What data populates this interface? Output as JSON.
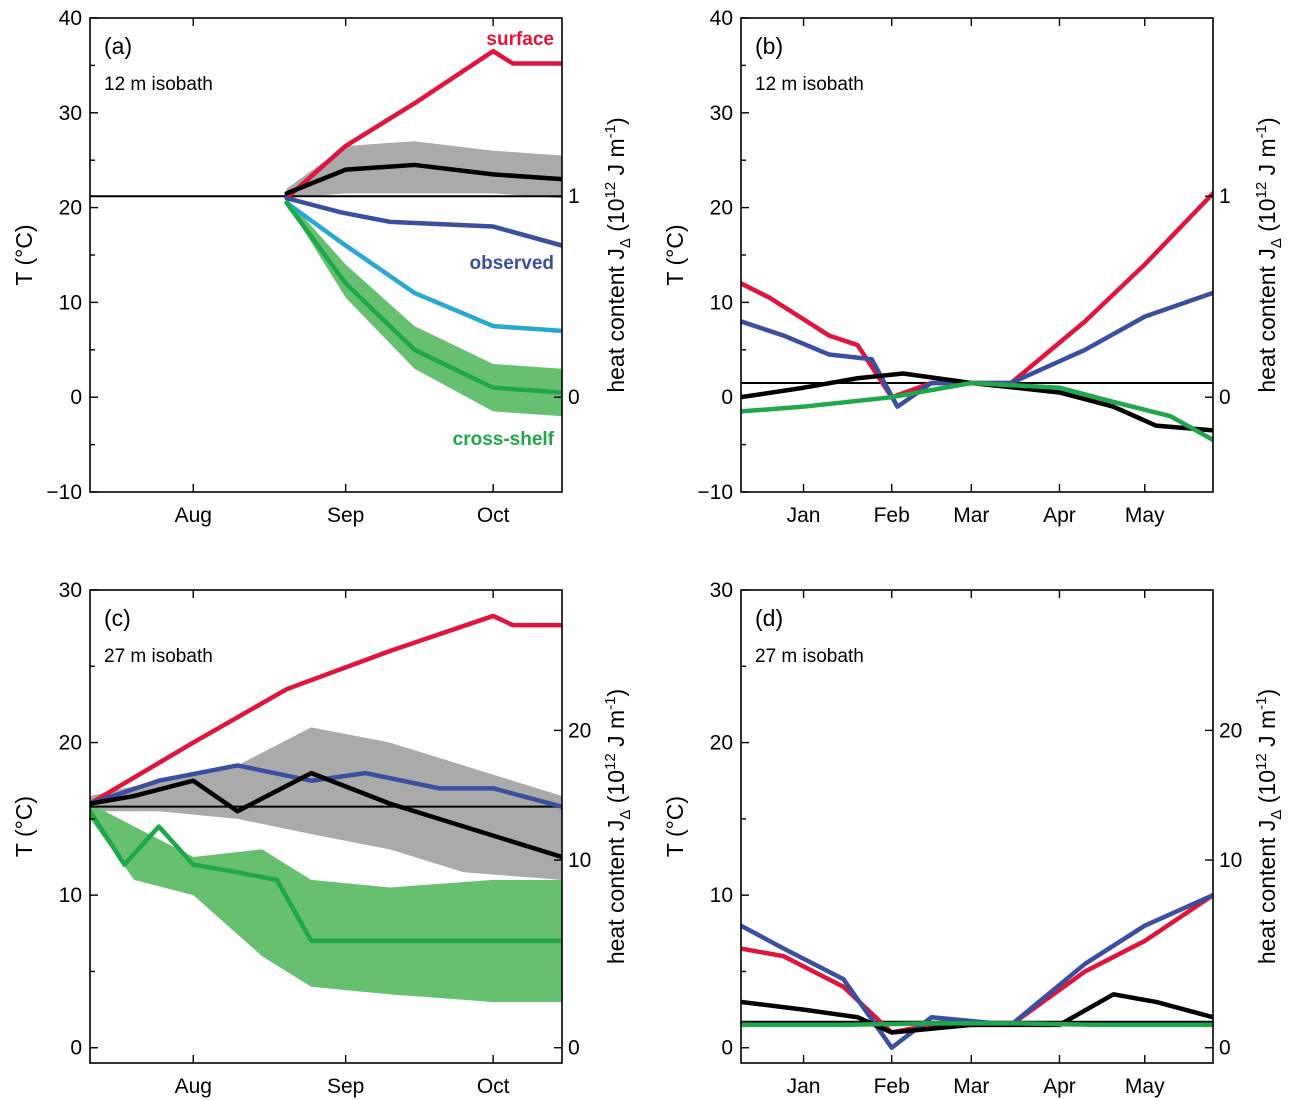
{
  "chart_data": [
    {
      "id": "a",
      "type": "line",
      "panel_label": "(a)",
      "subtitle": "12 m isobath",
      "ylabel": "T (°C)",
      "ylabel_right_main": "heat content J",
      "ylabel_right_sub": "Δ",
      "ylabel_right_unit": " (10",
      "ylabel_right_exp": "12",
      "ylabel_right_unit2": " J m",
      "ylabel_right_exp2": "-1",
      "ylabel_right_close": ")",
      "ylim": [
        -10,
        40
      ],
      "yticks": [
        -10,
        0,
        10,
        20,
        30,
        40
      ],
      "ylim_right": [
        0,
        1
      ],
      "yticks_right": [
        0,
        1
      ],
      "xlim": [
        "2017-07-11",
        "2017-10-15"
      ],
      "xticks": [
        {
          "date": "2017-08-01",
          "label": "Aug"
        },
        {
          "date": "2017-09-01",
          "label": "Sep"
        },
        {
          "date": "2017-10-01",
          "label": "Oct"
        }
      ],
      "reference_line_y": 21.2,
      "annotations": [
        {
          "text": "surface",
          "color": "#e0143c"
        },
        {
          "text": "observed",
          "color": "#3a4fa0"
        },
        {
          "text": "cross-shelf",
          "color": "#1fa84a"
        }
      ],
      "bands": [
        {
          "name": "gray band",
          "color": "#aaaaaa",
          "x": [
            "2017-08-20",
            "2017-09-01",
            "2017-09-15",
            "2017-10-01",
            "2017-10-15"
          ],
          "lower": [
            21,
            21.5,
            21.5,
            21.5,
            21
          ],
          "upper": [
            22,
            26.5,
            27,
            26,
            25.5
          ]
        },
        {
          "name": "green band",
          "color": "#66c070",
          "x": [
            "2017-08-20",
            "2017-09-01",
            "2017-09-15",
            "2017-10-01",
            "2017-10-15"
          ],
          "lower": [
            20.5,
            10.5,
            3,
            -1.5,
            -2
          ],
          "upper": [
            21,
            14,
            7.5,
            3.5,
            3
          ]
        }
      ],
      "series": [
        {
          "color": "#e0143c",
          "x": [
            "2017-08-20",
            "2017-09-01",
            "2017-09-15",
            "2017-10-01",
            "2017-10-05",
            "2017-10-15"
          ],
          "y": [
            21,
            26.5,
            31,
            36.5,
            35.2,
            35.2
          ]
        },
        {
          "color": "#000000",
          "x": [
            "2017-08-20",
            "2017-09-01",
            "2017-09-15",
            "2017-10-01",
            "2017-10-15"
          ],
          "y": [
            21.5,
            24,
            24.5,
            23.5,
            23
          ]
        },
        {
          "color": "#3a4fa0",
          "x": [
            "2017-08-20",
            "2017-08-31",
            "2017-09-10",
            "2017-10-01",
            "2017-10-15"
          ],
          "y": [
            21,
            19.5,
            18.5,
            18,
            16
          ]
        },
        {
          "color": "#27a9d2",
          "x": [
            "2017-08-20",
            "2017-09-01",
            "2017-09-15",
            "2017-10-01",
            "2017-10-15"
          ],
          "y": [
            20.5,
            16,
            11,
            7.5,
            7
          ]
        },
        {
          "color": "#1fa84a",
          "x": [
            "2017-08-20",
            "2017-09-01",
            "2017-09-15",
            "2017-10-01",
            "2017-10-15"
          ],
          "y": [
            20.5,
            12,
            5,
            1,
            0.5
          ]
        }
      ]
    },
    {
      "id": "b",
      "type": "line",
      "panel_label": "(b)",
      "subtitle": "12 m isobath",
      "ylabel": "T (°C)",
      "ylabel_right_main": "heat content J",
      "ylabel_right_sub": "Δ",
      "ylabel_right_unit": " (10",
      "ylabel_right_exp": "12",
      "ylabel_right_unit2": " J m",
      "ylabel_right_exp2": "-1",
      "ylabel_right_close": ")",
      "ylim": [
        -10,
        40
      ],
      "yticks": [
        -10,
        0,
        10,
        20,
        30,
        40
      ],
      "ylim_right": [
        0,
        1
      ],
      "yticks_right": [
        0,
        1
      ],
      "xlim": [
        "2017-12-10",
        "2018-05-25"
      ],
      "xticks": [
        {
          "date": "2018-01-01",
          "label": "Jan"
        },
        {
          "date": "2018-02-01",
          "label": "Feb"
        },
        {
          "date": "2018-03-01",
          "label": "Mar"
        },
        {
          "date": "2018-04-01",
          "label": "Apr"
        },
        {
          "date": "2018-05-01",
          "label": "May"
        }
      ],
      "reference_line_y": 1.5,
      "series": [
        {
          "color": "#e0143c",
          "x": [
            "2017-12-10",
            "2017-12-20",
            "2018-01-10",
            "2018-01-20",
            "2018-02-01",
            "2018-02-15",
            "2018-03-15",
            "2018-04-10",
            "2018-05-01",
            "2018-05-25"
          ],
          "y": [
            12,
            10.5,
            6.5,
            5.5,
            0,
            1.5,
            1.5,
            8,
            14,
            21.5
          ]
        },
        {
          "color": "#3a4fa0",
          "x": [
            "2017-12-10",
            "2017-12-25",
            "2018-01-10",
            "2018-01-25",
            "2018-02-03",
            "2018-02-15",
            "2018-03-15",
            "2018-04-10",
            "2018-05-01",
            "2018-05-25"
          ],
          "y": [
            8,
            6.5,
            4.5,
            4,
            -1,
            1.5,
            1.5,
            5,
            8.5,
            11
          ]
        },
        {
          "color": "#000000",
          "x": [
            "2017-12-10",
            "2018-01-01",
            "2018-01-20",
            "2018-02-05",
            "2018-03-01",
            "2018-04-01",
            "2018-04-20",
            "2018-05-05",
            "2018-05-25"
          ],
          "y": [
            0,
            1,
            2,
            2.5,
            1.5,
            0.5,
            -1,
            -3,
            -3.5
          ]
        },
        {
          "color": "#1fa84a",
          "x": [
            "2017-12-10",
            "2018-01-01",
            "2018-02-01",
            "2018-03-01",
            "2018-04-01",
            "2018-04-20",
            "2018-05-10",
            "2018-05-25"
          ],
          "y": [
            -1.5,
            -1,
            0,
            1.5,
            1,
            -0.5,
            -2,
            -4.5
          ]
        }
      ]
    },
    {
      "id": "c",
      "type": "line",
      "panel_label": "(c)",
      "subtitle": "27 m isobath",
      "ylabel": "T (°C)",
      "ylabel_right_main": "heat content J",
      "ylabel_right_sub": "Δ",
      "ylabel_right_unit": " (10",
      "ylabel_right_exp": "12",
      "ylabel_right_unit2": " J m",
      "ylabel_right_exp2": "-1",
      "ylabel_right_close": ")",
      "ylim": [
        -1,
        30
      ],
      "yticks": [
        0,
        10,
        20,
        30
      ],
      "ylim_right": [
        0,
        20
      ],
      "yticks_right": [
        0,
        10,
        20
      ],
      "xlim": [
        "2017-07-11",
        "2017-10-15"
      ],
      "xticks": [
        {
          "date": "2017-08-01",
          "label": "Aug"
        },
        {
          "date": "2017-09-01",
          "label": "Sep"
        },
        {
          "date": "2017-10-01",
          "label": "Oct"
        }
      ],
      "reference_line_y": 15.8,
      "bands": [
        {
          "name": "gray band",
          "color": "#aaaaaa",
          "x": [
            "2017-07-11",
            "2017-07-25",
            "2017-08-10",
            "2017-08-25",
            "2017-09-10",
            "2017-09-25",
            "2017-10-15"
          ],
          "lower": [
            15.5,
            15.5,
            15,
            14,
            13,
            11.5,
            11
          ],
          "upper": [
            16.5,
            17.5,
            18.5,
            21,
            20,
            18.5,
            16.5
          ]
        },
        {
          "name": "green band",
          "color": "#66c070",
          "x": [
            "2017-07-11",
            "2017-07-20",
            "2017-08-01",
            "2017-08-15",
            "2017-08-25",
            "2017-09-10",
            "2017-10-01",
            "2017-10-15"
          ],
          "lower": [
            15,
            11,
            10,
            6,
            4,
            3.5,
            3,
            3
          ],
          "upper": [
            16,
            14.5,
            12.5,
            13,
            11,
            10.5,
            11,
            11
          ]
        }
      ],
      "series": [
        {
          "color": "#e0143c",
          "x": [
            "2017-07-11",
            "2017-08-01",
            "2017-08-20",
            "2017-09-10",
            "2017-10-01",
            "2017-10-05",
            "2017-10-15"
          ],
          "y": [
            16,
            20,
            23.5,
            26,
            28.3,
            27.7,
            27.7
          ]
        },
        {
          "color": "#3a4fa0",
          "x": [
            "2017-07-11",
            "2017-07-25",
            "2017-08-10",
            "2017-08-25",
            "2017-09-05",
            "2017-09-20",
            "2017-10-01",
            "2017-10-15"
          ],
          "y": [
            16,
            17.5,
            18.5,
            17.5,
            18,
            17,
            17,
            15.8
          ]
        },
        {
          "color": "#000000",
          "x": [
            "2017-07-11",
            "2017-07-20",
            "2017-08-01",
            "2017-08-10",
            "2017-08-25",
            "2017-09-10",
            "2017-09-25",
            "2017-10-15"
          ],
          "y": [
            16,
            16.5,
            17.5,
            15.5,
            18,
            16,
            14.5,
            12.5
          ]
        },
        {
          "color": "#1fa84a",
          "x": [
            "2017-07-11",
            "2017-07-18",
            "2017-07-25",
            "2017-08-01",
            "2017-08-10",
            "2017-08-18",
            "2017-08-25",
            "2017-09-10",
            "2017-09-25",
            "2017-10-15"
          ],
          "y": [
            15.5,
            12,
            14.5,
            12,
            11.5,
            11,
            7,
            7,
            7,
            7
          ]
        }
      ]
    },
    {
      "id": "d",
      "type": "line",
      "panel_label": "(d)",
      "subtitle": "27 m isobath",
      "ylabel": "T (°C)",
      "ylabel_right_main": "heat content J",
      "ylabel_right_sub": "Δ",
      "ylabel_right_unit": " (10",
      "ylabel_right_exp": "12",
      "ylabel_right_unit2": " J m",
      "ylabel_right_exp2": "-1",
      "ylabel_right_close": ")",
      "ylim": [
        -1,
        30
      ],
      "yticks": [
        0,
        10,
        20,
        30
      ],
      "ylim_right": [
        0,
        20
      ],
      "yticks_right": [
        0,
        10,
        20
      ],
      "xlim": [
        "2017-12-10",
        "2018-05-25"
      ],
      "xticks": [
        {
          "date": "2018-01-01",
          "label": "Jan"
        },
        {
          "date": "2018-02-01",
          "label": "Feb"
        },
        {
          "date": "2018-03-01",
          "label": "Mar"
        },
        {
          "date": "2018-04-01",
          "label": "Apr"
        },
        {
          "date": "2018-05-01",
          "label": "May"
        }
      ],
      "reference_line_y": 1.7,
      "series": [
        {
          "color": "#e0143c",
          "x": [
            "2017-12-10",
            "2017-12-25",
            "2018-01-15",
            "2018-02-01",
            "2018-02-15",
            "2018-03-15",
            "2018-04-10",
            "2018-05-01",
            "2018-05-25"
          ],
          "y": [
            6.5,
            6,
            4,
            1,
            1.5,
            1.5,
            5,
            7,
            10
          ]
        },
        {
          "color": "#3a4fa0",
          "x": [
            "2017-12-10",
            "2017-12-25",
            "2018-01-15",
            "2018-02-01",
            "2018-02-15",
            "2018-03-15",
            "2018-04-10",
            "2018-05-01",
            "2018-05-25"
          ],
          "y": [
            8,
            6.5,
            4.5,
            0,
            2,
            1.5,
            5.5,
            8,
            10
          ]
        },
        {
          "color": "#000000",
          "x": [
            "2017-12-10",
            "2018-01-01",
            "2018-01-20",
            "2018-02-01",
            "2018-03-01",
            "2018-04-01",
            "2018-04-20",
            "2018-05-05",
            "2018-05-25"
          ],
          "y": [
            3,
            2.5,
            2,
            1,
            1.5,
            1.5,
            3.5,
            3,
            2
          ]
        },
        {
          "color": "#1fa84a",
          "x": [
            "2017-12-10",
            "2018-01-15",
            "2018-02-15",
            "2018-03-15",
            "2018-04-15",
            "2018-05-25"
          ],
          "y": [
            1.5,
            1.5,
            1.6,
            1.6,
            1.5,
            1.5
          ]
        }
      ]
    }
  ]
}
